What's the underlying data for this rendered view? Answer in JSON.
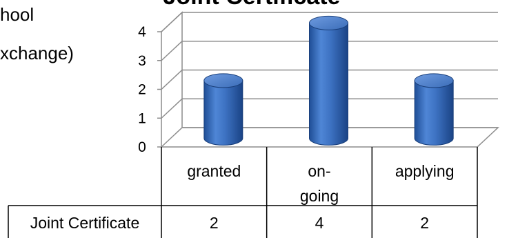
{
  "background_text": {
    "line1": "hool",
    "line2": "xchange)"
  },
  "chart_data": {
    "type": "bar",
    "title": "Joint Certificate",
    "categories": [
      "granted",
      "on-\ngoing",
      "applying"
    ],
    "series": [
      {
        "name": "Joint Certificate",
        "values": [
          2,
          4,
          2
        ]
      }
    ],
    "ylim": [
      0,
      4
    ],
    "yticks": [
      0,
      1,
      2,
      3,
      4
    ],
    "grid": true,
    "legend": "data-table",
    "style": "3d-cylinder",
    "bar_color": "#3F74C0",
    "data_table": {
      "row_label": "Joint Certificate",
      "values": [
        "2",
        "4",
        "2"
      ]
    }
  }
}
